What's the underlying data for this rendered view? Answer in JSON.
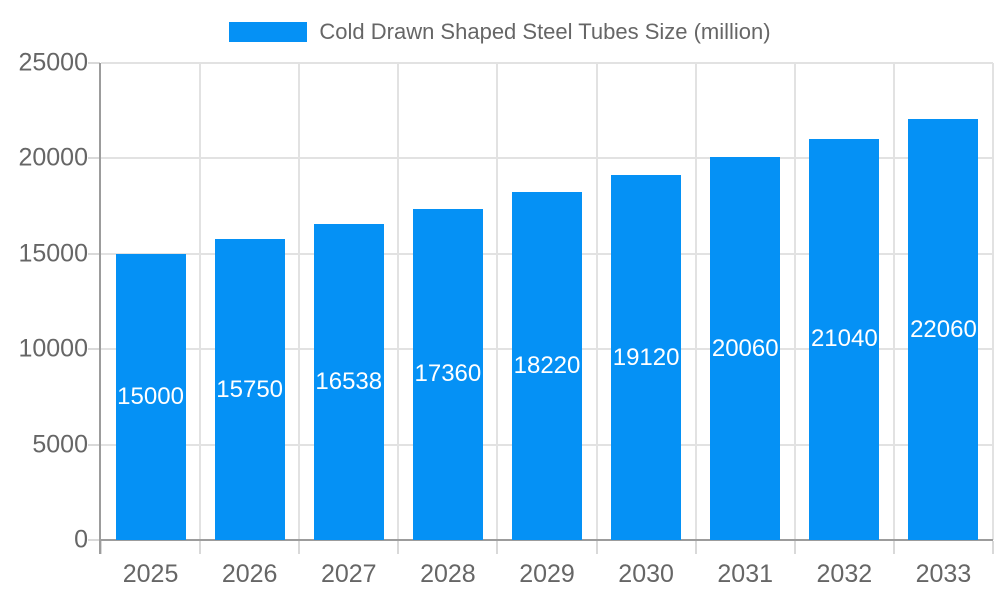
{
  "legend": {
    "label": "Cold Drawn Shaped Steel Tubes Size (million)"
  },
  "chart_data": {
    "type": "bar",
    "title": "Cold Drawn Shaped Steel Tubes Size (million)",
    "categories": [
      "2025",
      "2026",
      "2027",
      "2028",
      "2029",
      "2030",
      "2031",
      "2032",
      "2033"
    ],
    "values": [
      15000,
      15750,
      16538,
      17360,
      18220,
      19120,
      20060,
      21040,
      22060
    ],
    "value_labels": [
      "15000",
      "15750",
      "16538",
      "17360",
      "18220",
      "19120",
      "20060",
      "21040",
      "22060"
    ],
    "ylim": [
      0,
      25000
    ],
    "yticks": [
      0,
      5000,
      10000,
      15000,
      20000,
      25000
    ],
    "ytick_labels": [
      "0",
      "5000",
      "10000",
      "15000",
      "20000",
      "25000"
    ],
    "grid": true,
    "legend_position": "top",
    "value_label_position": "middle-of-bar",
    "colors": {
      "bar": "#0591f5",
      "grid_line": "#e2e2e2",
      "axis_line": "#9c9c9c",
      "tick_line": "#d9d9d9",
      "axis_label": "#666666",
      "value_label": "#ffffff",
      "legend_text": "#666666"
    }
  }
}
